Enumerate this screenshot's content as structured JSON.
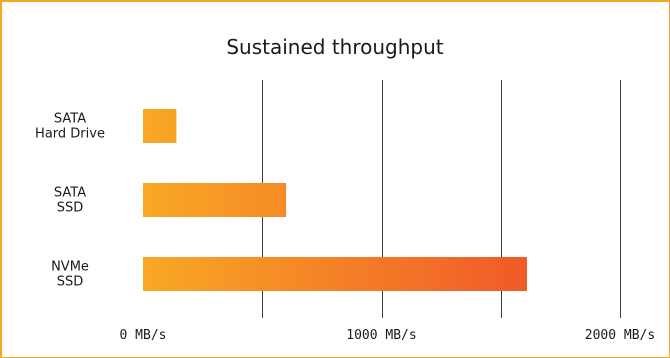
{
  "chart_data": {
    "type": "bar",
    "orientation": "horizontal",
    "title": "Sustained throughput",
    "categories": [
      [
        "SATA",
        "Hard Drive"
      ],
      [
        "SATA",
        "SSD"
      ],
      [
        "NVMe",
        "SSD"
      ]
    ],
    "values": [
      140,
      600,
      1610
    ],
    "x_ticks": [
      0,
      500,
      1000,
      1500,
      2000
    ],
    "x_tick_labels": [
      "0 MB/s",
      "",
      "1000 MB/s",
      "",
      "2000 MB/s"
    ],
    "xlim": [
      0,
      2000
    ],
    "grid": "vertical",
    "legend": "none",
    "colors": {
      "bar_start": "#f9a825",
      "bar_end": "#f05a28",
      "frame": "#f5a623",
      "gridline": "#3a3a3a"
    }
  }
}
